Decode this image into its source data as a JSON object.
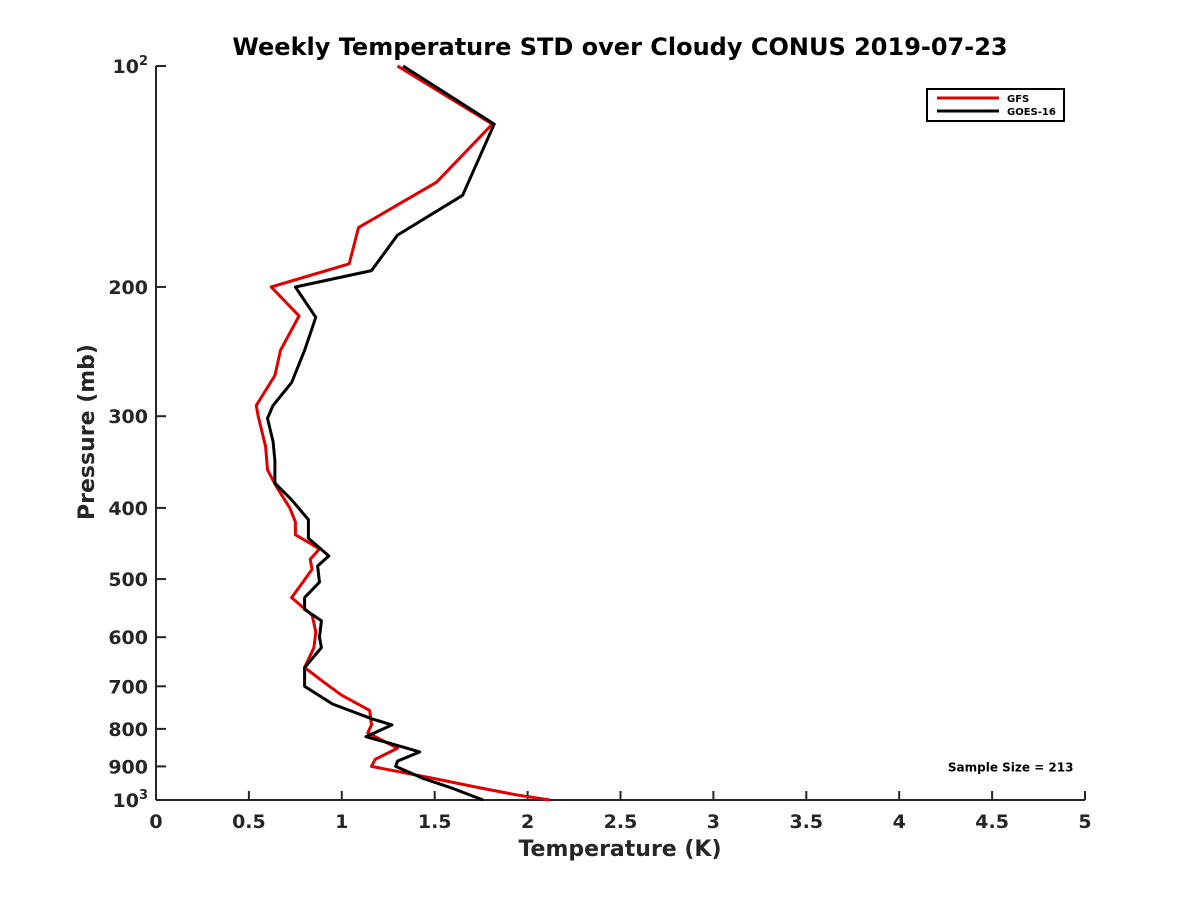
{
  "chart_data": {
    "type": "line",
    "title": "Weekly Temperature STD over Cloudy CONUS 2019-07-23",
    "xlabel": "Temperature (K)",
    "ylabel": "Pressure (mb)",
    "xlim": [
      0,
      5
    ],
    "ylim": [
      100,
      1000
    ],
    "y_scale": "log",
    "y_reversed": true,
    "grid": false,
    "legend_position": "top-right",
    "x_ticks": [
      "0",
      "0.5",
      "1",
      "1.5",
      "2",
      "2.5",
      "3",
      "3.5",
      "4",
      "4.5",
      "5"
    ],
    "x_tick_values": [
      0,
      0.5,
      1,
      1.5,
      2,
      2.5,
      3,
      3.5,
      4,
      4.5,
      5
    ],
    "y_ticks": [
      {
        "value": 100,
        "base": "10",
        "exp": "2"
      },
      {
        "value": 200,
        "label": "200"
      },
      {
        "value": 300,
        "label": "300"
      },
      {
        "value": 400,
        "label": "400"
      },
      {
        "value": 500,
        "label": "500"
      },
      {
        "value": 600,
        "label": "600"
      },
      {
        "value": 700,
        "label": "700"
      },
      {
        "value": 800,
        "label": "800"
      },
      {
        "value": 900,
        "label": "900"
      },
      {
        "value": 1000,
        "base": "10",
        "exp": "3"
      }
    ],
    "series": [
      {
        "name": "GFS",
        "color": "#e00000",
        "points": [
          [
            1.3,
            100
          ],
          [
            1.81,
            120
          ],
          [
            1.51,
            144
          ],
          [
            1.09,
            166
          ],
          [
            1.04,
            186
          ],
          [
            0.62,
            200
          ],
          [
            0.77,
            219
          ],
          [
            0.67,
            244
          ],
          [
            0.64,
            264
          ],
          [
            0.54,
            290
          ],
          [
            0.55,
            300
          ],
          [
            0.59,
            330
          ],
          [
            0.6,
            355
          ],
          [
            0.65,
            375
          ],
          [
            0.72,
            400
          ],
          [
            0.75,
            418
          ],
          [
            0.75,
            435
          ],
          [
            0.88,
            455
          ],
          [
            0.83,
            470
          ],
          [
            0.84,
            485
          ],
          [
            0.79,
            505
          ],
          [
            0.73,
            530
          ],
          [
            0.84,
            560
          ],
          [
            0.86,
            590
          ],
          [
            0.85,
            620
          ],
          [
            0.8,
            660
          ],
          [
            0.9,
            690
          ],
          [
            1.0,
            720
          ],
          [
            1.15,
            755
          ],
          [
            1.16,
            790
          ],
          [
            1.14,
            810
          ],
          [
            1.3,
            850
          ],
          [
            1.18,
            880
          ],
          [
            1.16,
            900
          ],
          [
            1.5,
            935
          ],
          [
            1.72,
            960
          ],
          [
            1.95,
            985
          ],
          [
            2.12,
            1000
          ]
        ]
      },
      {
        "name": "GOES-16",
        "color": "#000000",
        "points": [
          [
            1.33,
            100
          ],
          [
            1.82,
            120
          ],
          [
            1.65,
            150
          ],
          [
            1.3,
            170
          ],
          [
            1.16,
            190
          ],
          [
            0.75,
            200
          ],
          [
            0.86,
            220
          ],
          [
            0.8,
            244
          ],
          [
            0.73,
            270
          ],
          [
            0.63,
            290
          ],
          [
            0.6,
            302
          ],
          [
            0.63,
            325
          ],
          [
            0.64,
            345
          ],
          [
            0.64,
            370
          ],
          [
            0.73,
            390
          ],
          [
            0.82,
            415
          ],
          [
            0.82,
            440
          ],
          [
            0.93,
            465
          ],
          [
            0.87,
            480
          ],
          [
            0.88,
            505
          ],
          [
            0.8,
            530
          ],
          [
            0.8,
            550
          ],
          [
            0.89,
            570
          ],
          [
            0.88,
            600
          ],
          [
            0.89,
            620
          ],
          [
            0.8,
            660
          ],
          [
            0.8,
            700
          ],
          [
            0.95,
            740
          ],
          [
            1.16,
            775
          ],
          [
            1.27,
            790
          ],
          [
            1.13,
            820
          ],
          [
            1.28,
            840
          ],
          [
            1.42,
            860
          ],
          [
            1.3,
            885
          ],
          [
            1.29,
            900
          ],
          [
            1.44,
            935
          ],
          [
            1.6,
            965
          ],
          [
            1.76,
            1000
          ]
        ]
      }
    ],
    "annotations": [
      {
        "text": "Sample Size = 213",
        "x": 4.6,
        "y": 900
      }
    ]
  }
}
